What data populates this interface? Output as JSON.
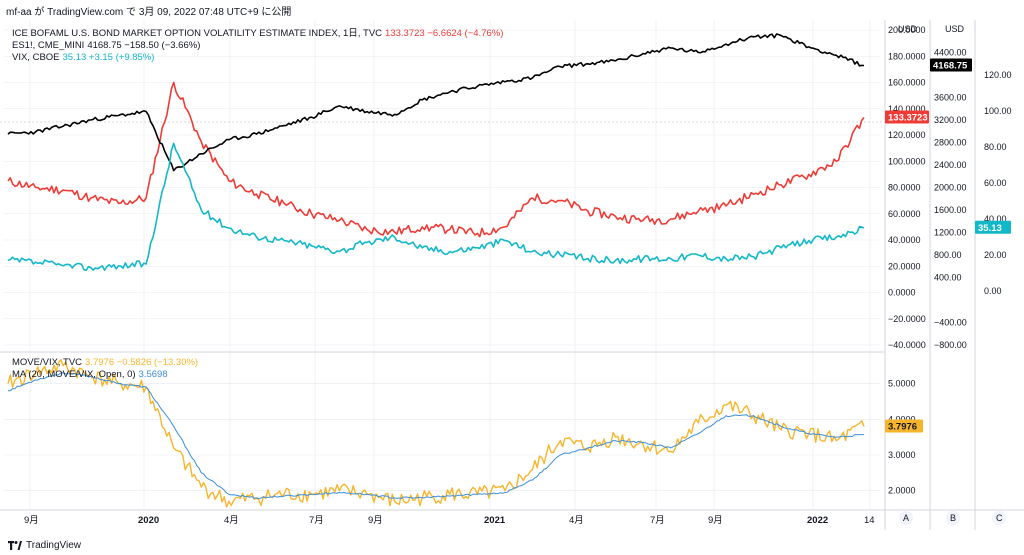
{
  "header": {
    "text": "mf-aa が TradingView.com で 3月 09, 2022 07:48 UTC+9 に公開"
  },
  "footer": {
    "brand": "TradingView",
    "logo_icon": "tradingview-logo-icon"
  },
  "colors": {
    "move": "#ef3b36",
    "es": "#000000",
    "vix": "#13b8c8",
    "ratio": "#f7b52c",
    "ma": "#3a8fd9",
    "grid": "#e6e9ef",
    "axis_text": "#131722"
  },
  "legend_top": [
    {
      "name": "ICE BOFAML U.S. BOND MARKET OPTION VOLATILITY ESTIMATE INDEX, 1日, TVC",
      "value": "133.3723 −6.6624 (−4.76%)",
      "color": "#ef3b36"
    },
    {
      "name": "ES1!, CME_MINI",
      "value": "4168.75 −158.50 (−3.66%)",
      "color": "#131722"
    },
    {
      "name": "VIX, CBOE",
      "value": "35.13 +3.15 (+9.85%)",
      "color": "#13b8c8"
    }
  ],
  "legend_bottom": [
    {
      "name": "MOVE/VIX, TVC",
      "value": "3.7976 −0.5826 (−13.30%)",
      "color": "#f7b52c"
    },
    {
      "name": "MA (20, MOVE/VIX, Open, 0)",
      "value": "3.5698",
      "color": "#3a8fd9"
    }
  ],
  "axes": {
    "currency_label": "USD",
    "scale_letters": [
      "A",
      "B",
      "C"
    ],
    "move_ticks": [
      "200.0000",
      "180.0000",
      "160.0000",
      "140.0000",
      "120.0000",
      "100.0000",
      "80.0000",
      "60.0000",
      "40.0000",
      "20.0000",
      "0.0000",
      "−20.0000",
      "−40.0000"
    ],
    "es_ticks": [
      "4400.00",
      "3600.00",
      "3200.00",
      "2800.00",
      "2400.00",
      "2000.00",
      "1600.00",
      "1200.00",
      "800.00",
      "400.00",
      "−400.00",
      "−800.00"
    ],
    "vix_ticks": [
      "120.00",
      "100.00",
      "80.00",
      "60.00",
      "40.00",
      "20.00",
      "0.00"
    ],
    "ratio_ticks": [
      "5.0000",
      "4.0000",
      "3.0000",
      "2.0000"
    ],
    "x_ticks": [
      "9月",
      "2020",
      "4月",
      "7月",
      "9月",
      "2021",
      "4月",
      "7月",
      "9月",
      "2022",
      "14"
    ]
  },
  "badges": {
    "es": "4168.75",
    "move": "133.3723",
    "vix": "35.13",
    "ratio": "3.7976"
  },
  "chart_data": [
    {
      "type": "line",
      "title": "",
      "ylabel": "USD",
      "ylim": [
        -40,
        200
      ],
      "x": [
        "2019-09",
        "2019-10",
        "2019-11",
        "2019-12",
        "2020-01",
        "2020-02",
        "2020-03a",
        "2020-03b",
        "2020-04",
        "2020-05",
        "2020-06",
        "2020-07",
        "2020-08",
        "2020-09",
        "2020-10",
        "2020-11",
        "2020-12",
        "2021-01",
        "2021-02",
        "2021-03",
        "2021-04",
        "2021-05",
        "2021-06",
        "2021-07",
        "2021-08",
        "2021-09",
        "2021-10",
        "2021-11",
        "2021-12",
        "2022-01",
        "2022-02",
        "2022-03"
      ],
      "series": [
        {
          "name": "ICE BOFAML U.S. BOND MARKET OPTION VOLATILITY ESTIMATE INDEX",
          "values": [
            85,
            80,
            78,
            72,
            68,
            72,
            160,
            115,
            85,
            75,
            68,
            60,
            55,
            48,
            46,
            50,
            48,
            45,
            50,
            72,
            70,
            62,
            58,
            55,
            56,
            62,
            66,
            75,
            82,
            90,
            100,
            133.37
          ]
        },
        {
          "name": "ES1!",
          "values": [
            2950,
            2990,
            3090,
            3200,
            3280,
            3350,
            2300,
            2600,
            2850,
            2950,
            3100,
            3250,
            3450,
            3350,
            3300,
            3560,
            3700,
            3800,
            3880,
            3950,
            4150,
            4200,
            4250,
            4380,
            4480,
            4400,
            4550,
            4680,
            4700,
            4500,
            4350,
            4168.75
          ]
        },
        {
          "name": "VIX",
          "values": [
            17,
            16,
            14,
            13,
            14,
            15,
            82,
            45,
            35,
            30,
            28,
            25,
            22,
            27,
            30,
            24,
            22,
            24,
            28,
            22,
            20,
            18,
            17,
            18,
            18,
            20,
            18,
            19,
            24,
            28,
            30,
            35.13
          ]
        }
      ],
      "es_ylim": [
        -800,
        4800
      ],
      "vix_ylim": [
        -30,
        145
      ],
      "grid": true,
      "legend": "top-left"
    },
    {
      "type": "line",
      "title": "",
      "ylim": [
        1.6,
        5.8
      ],
      "x": [
        "2019-09",
        "2019-10",
        "2019-11",
        "2019-12",
        "2020-01",
        "2020-02",
        "2020-03a",
        "2020-03b",
        "2020-04",
        "2020-05",
        "2020-06",
        "2020-07",
        "2020-08",
        "2020-09",
        "2020-10",
        "2020-11",
        "2020-12",
        "2021-01",
        "2021-02",
        "2021-03",
        "2021-04",
        "2021-05",
        "2021-06",
        "2021-07",
        "2021-08",
        "2021-09",
        "2021-10",
        "2021-11",
        "2021-12",
        "2022-01",
        "2022-02",
        "2022-03"
      ],
      "series": [
        {
          "name": "MOVE/VIX",
          "values": [
            5.0,
            5.3,
            5.5,
            5.2,
            5.0,
            4.9,
            3.2,
            2.1,
            1.7,
            1.8,
            1.9,
            1.9,
            2.0,
            1.9,
            1.7,
            1.8,
            1.9,
            1.9,
            2.0,
            2.6,
            3.4,
            3.2,
            3.5,
            3.3,
            3.1,
            3.9,
            4.4,
            4.1,
            3.7,
            3.6,
            3.4,
            3.7976
          ]
        },
        {
          "name": "MA (20, MOVE/VIX, Open, 0)",
          "values": [
            4.8,
            5.1,
            5.3,
            5.2,
            5.0,
            4.9,
            3.8,
            2.5,
            1.9,
            1.8,
            1.85,
            1.9,
            1.95,
            1.9,
            1.8,
            1.8,
            1.85,
            1.9,
            1.95,
            2.3,
            3.0,
            3.2,
            3.4,
            3.35,
            3.2,
            3.6,
            4.1,
            4.1,
            3.8,
            3.6,
            3.5,
            3.5698
          ]
        }
      ],
      "grid": true,
      "legend": "top-left"
    }
  ]
}
